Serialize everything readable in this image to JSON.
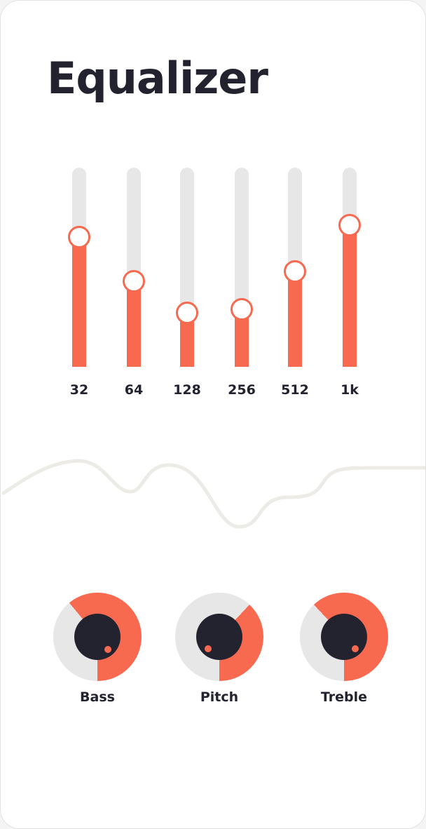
{
  "title": "Equalizer",
  "colors": {
    "accent": "#f76a50",
    "track": "#e7e7e7",
    "knob": "#23232f",
    "text": "#22232e",
    "wave": "#ecebe5"
  },
  "equalizer": {
    "bands": [
      {
        "label": "32",
        "level": 0.65
      },
      {
        "label": "64",
        "level": 0.43
      },
      {
        "label": "128",
        "level": 0.27
      },
      {
        "label": "256",
        "level": 0.29
      },
      {
        "label": "512",
        "level": 0.48
      },
      {
        "label": "1k",
        "level": 0.71
      }
    ]
  },
  "knobs": [
    {
      "label": "Bass",
      "level": 0.61
    },
    {
      "label": "Pitch",
      "level": 0.38
    },
    {
      "label": "Treble",
      "level": 0.62
    }
  ]
}
